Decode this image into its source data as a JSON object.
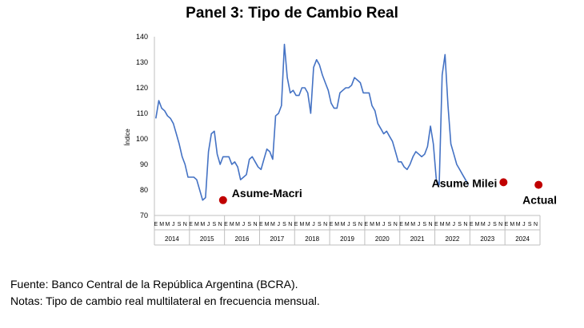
{
  "chart_data": {
    "type": "line",
    "title": "Panel 3: Tipo de Cambio Real",
    "ylabel": "Índice",
    "xlabel": "",
    "ylim": [
      70,
      140
    ],
    "yticks": [
      70,
      80,
      90,
      100,
      110,
      120,
      130,
      140
    ],
    "grid": false,
    "legend": "none",
    "month_tick_labels": [
      "E",
      "M",
      "M",
      "J",
      "S",
      "N"
    ],
    "years": [
      "2014",
      "2015",
      "2016",
      "2017",
      "2018",
      "2019",
      "2020",
      "2021",
      "2022",
      "2023",
      "2024"
    ],
    "series": [
      {
        "color": "#4472C4",
        "x_start": "2014-01",
        "x_end": "2024-12",
        "values": [
          108,
          115,
          112,
          111,
          109,
          108,
          106,
          102,
          98,
          93,
          90,
          85,
          85,
          85,
          84,
          80,
          76,
          77,
          95,
          102,
          103,
          94,
          90,
          93,
          93,
          93,
          90,
          91,
          89,
          84,
          85,
          86,
          92,
          93,
          91,
          89,
          88,
          92,
          96,
          95,
          92,
          109,
          110,
          113,
          137,
          124,
          118,
          119,
          117,
          117,
          120,
          120,
          118,
          110,
          128,
          131,
          129,
          125,
          122,
          119,
          114,
          112,
          112,
          118,
          119,
          120,
          120,
          121,
          124,
          123,
          122,
          118,
          118,
          118,
          113,
          111,
          106,
          104,
          102,
          103,
          101,
          99,
          95,
          91,
          91,
          89,
          88,
          90,
          93,
          95,
          94,
          93,
          94,
          97,
          105,
          98,
          84,
          82,
          125,
          133,
          113,
          98,
          94,
          90,
          88,
          86,
          84,
          82
        ]
      }
    ],
    "annotations": [
      {
        "text": "Asume-Macri",
        "x": "2015-12",
        "y": 76
      },
      {
        "text": "Asume Milei",
        "x": "2023-12",
        "y": 83
      },
      {
        "text": "Actual",
        "x": "2024-12",
        "y": 82
      }
    ],
    "marker_color": "#C00000"
  },
  "footer": {
    "source": "Fuente: Banco Central de la República Argentina (BCRA).",
    "notes": "Notas: Tipo de cambio real multilateral en frecuencia mensual."
  }
}
